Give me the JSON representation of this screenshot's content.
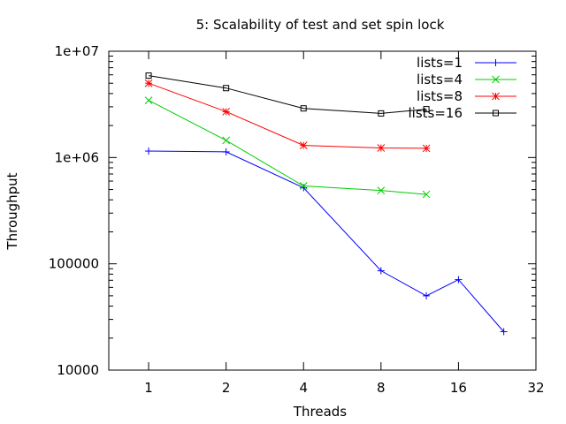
{
  "chart_data": {
    "type": "line",
    "title": "5: Scalability of test and set spin lock",
    "xlabel": "Threads",
    "ylabel": "Throughput",
    "xscale": "log2",
    "yscale": "log10",
    "xlim": [
      0.7,
      32
    ],
    "ylim": [
      10000,
      10000000
    ],
    "xticks": [
      1,
      2,
      4,
      8,
      16,
      32
    ],
    "xtick_labels": [
      "1",
      "2",
      "4",
      "8",
      "16",
      "32"
    ],
    "yticks": [
      10000,
      100000,
      1000000,
      10000000
    ],
    "ytick_labels": [
      "10000",
      "100000",
      "1e+06",
      "1e+07"
    ],
    "grid": false,
    "legend_position": "top-right",
    "series": [
      {
        "name": "lists=1",
        "color": "#0000ff",
        "marker": "plus",
        "x": [
          1,
          2,
          4,
          8,
          12,
          16,
          24
        ],
        "y": [
          1150000,
          1130000,
          520000,
          86000,
          50000,
          71000,
          23000
        ]
      },
      {
        "name": "lists=4",
        "color": "#00cc00",
        "marker": "cross",
        "x": [
          1,
          2,
          4,
          8,
          12
        ],
        "y": [
          3450000,
          1450000,
          540000,
          490000,
          450000
        ]
      },
      {
        "name": "lists=8",
        "color": "#ff0000",
        "marker": "star",
        "x": [
          1,
          2,
          4,
          8,
          12
        ],
        "y": [
          5000000,
          2700000,
          1300000,
          1230000,
          1220000
        ]
      },
      {
        "name": "lists=16",
        "color": "#000000",
        "marker": "square",
        "x": [
          1,
          2,
          4,
          8,
          12
        ],
        "y": [
          5900000,
          4500000,
          2900000,
          2600000,
          2850000
        ]
      }
    ]
  }
}
